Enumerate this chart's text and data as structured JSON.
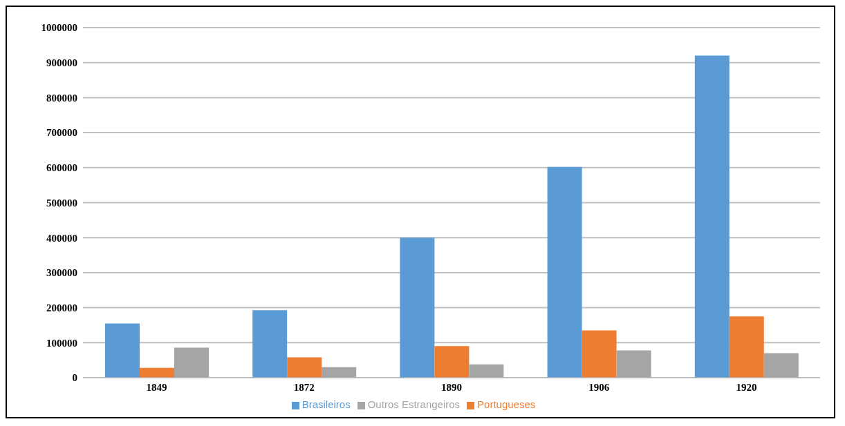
{
  "chart_data": {
    "type": "bar",
    "categories": [
      "1849",
      "1872",
      "1890",
      "1906",
      "1920"
    ],
    "series": [
      {
        "name": "Brasileiros",
        "color": "#5b9bd5",
        "values": [
          155000,
          193000,
          400000,
          602000,
          920000
        ]
      },
      {
        "name": "Portugueses",
        "color": "#ed7d31",
        "values": [
          28000,
          58000,
          90000,
          135000,
          175000
        ]
      },
      {
        "name": "Outros Estrangeiros",
        "color": "#a5a5a5",
        "values": [
          86000,
          30000,
          38000,
          78000,
          70000
        ]
      }
    ],
    "ylim": [
      0,
      1000000
    ],
    "yticks": [
      0,
      100000,
      200000,
      300000,
      400000,
      500000,
      600000,
      700000,
      800000,
      900000,
      1000000
    ],
    "grid": "y",
    "legend": "bottom"
  }
}
